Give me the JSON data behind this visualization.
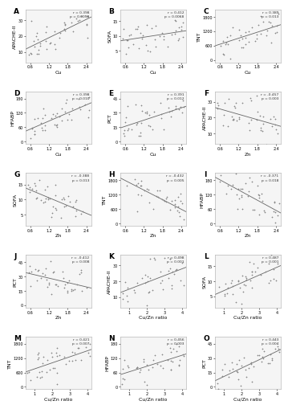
{
  "panels": [
    {
      "label": "A",
      "row": 0,
      "col": 0,
      "xlabel": "Cu",
      "ylabel": "APACHE-II",
      "r": "0.398",
      "p": "0.0098",
      "x_range": [
        0.45,
        2.55
      ],
      "y_range": [
        5,
        35
      ],
      "direction": "positive"
    },
    {
      "label": "B",
      "row": 0,
      "col": 1,
      "xlabel": "Cu",
      "ylabel": "SOFA",
      "r": "0.412",
      "p": "0.0068",
      "x_range": [
        0.45,
        2.55
      ],
      "y_range": [
        2,
        18
      ],
      "direction": "positive"
    },
    {
      "label": "C",
      "row": 0,
      "col": 2,
      "xlabel": "Cu",
      "ylabel": "TNT",
      "r": "0.389",
      "p": "0.013",
      "x_range": [
        0.45,
        2.55
      ],
      "y_range": [
        0,
        2000
      ],
      "direction": "positive"
    },
    {
      "label": "D",
      "row": 1,
      "col": 0,
      "xlabel": "Cu",
      "ylabel": "HFABP",
      "r": "0.398",
      "p": "0.010",
      "x_range": [
        0.45,
        2.55
      ],
      "y_range": [
        0,
        200
      ],
      "direction": "positive"
    },
    {
      "label": "E",
      "row": 1,
      "col": 1,
      "xlabel": "Cu",
      "ylabel": "PCT",
      "r": "0.391",
      "p": "0.012",
      "x_range": [
        0.45,
        2.55
      ],
      "y_range": [
        0,
        50
      ],
      "direction": "positive"
    },
    {
      "label": "F",
      "row": 1,
      "col": 2,
      "xlabel": "Zn",
      "ylabel": "APACHE-II",
      "r": "-0.457",
      "p": "0.003",
      "x_range": [
        0.45,
        2.55
      ],
      "y_range": [
        5,
        35
      ],
      "direction": "negative"
    },
    {
      "label": "G",
      "row": 2,
      "col": 0,
      "xlabel": "Zn",
      "ylabel": "SOFA",
      "r": "-0.388",
      "p": "0.013",
      "x_range": [
        0.45,
        2.55
      ],
      "y_range": [
        2,
        18
      ],
      "direction": "negative"
    },
    {
      "label": "H",
      "row": 2,
      "col": 1,
      "xlabel": "Zn",
      "ylabel": "TNT",
      "r": "-0.432",
      "p": "0.005",
      "x_range": [
        0.45,
        2.55
      ],
      "y_range": [
        0,
        2000
      ],
      "direction": "negative"
    },
    {
      "label": "I",
      "row": 2,
      "col": 2,
      "xlabel": "Zn",
      "ylabel": "HFABP",
      "r": "-0.371",
      "p": "0.018",
      "x_range": [
        0.45,
        2.55
      ],
      "y_range": [
        0,
        200
      ],
      "direction": "negative"
    },
    {
      "label": "J",
      "row": 3,
      "col": 0,
      "xlabel": "Zn",
      "ylabel": "PCT",
      "r": "-0.412",
      "p": "0.008",
      "x_range": [
        0.45,
        2.55
      ],
      "y_range": [
        0,
        50
      ],
      "direction": "negative"
    },
    {
      "label": "K",
      "row": 3,
      "col": 1,
      "xlabel": "Cu/Zn ratio",
      "ylabel": "APACHE-II",
      "r": "0.498",
      "p": "0.001",
      "x_range": [
        0.5,
        4.2
      ],
      "y_range": [
        5,
        35
      ],
      "direction": "positive"
    },
    {
      "label": "L",
      "row": 3,
      "col": 2,
      "xlabel": "Cu/Zn ratio",
      "ylabel": "SOFA",
      "r": "0.487",
      "p": "0.001",
      "x_range": [
        0.5,
        4.2
      ],
      "y_range": [
        2,
        18
      ],
      "direction": "positive"
    },
    {
      "label": "M",
      "row": 4,
      "col": 0,
      "xlabel": "Cu/Zn ratio",
      "ylabel": "TNT",
      "r": "0.421",
      "p": "0.007",
      "x_range": [
        0.5,
        4.2
      ],
      "y_range": [
        0,
        2000
      ],
      "direction": "positive"
    },
    {
      "label": "N",
      "row": 4,
      "col": 1,
      "xlabel": "Cu/Zn ratio",
      "ylabel": "HFABP",
      "r": "0.456",
      "p": "0.003",
      "x_range": [
        0.5,
        4.2
      ],
      "y_range": [
        0,
        200
      ],
      "direction": "positive"
    },
    {
      "label": "O",
      "row": 4,
      "col": 2,
      "xlabel": "Cu/Zn ratio",
      "ylabel": "PCT",
      "r": "0.443",
      "p": "0.004",
      "x_range": [
        0.5,
        4.2
      ],
      "y_range": [
        0,
        50
      ],
      "direction": "positive"
    }
  ],
  "n_points": 41,
  "marker": "+",
  "marker_size": 4,
  "marker_color": "#888888",
  "line_color": "#666666",
  "background_color": "#ffffff",
  "panel_bg": "#f5f5f5",
  "label_fontsize": 4.5,
  "tick_fontsize": 3.5,
  "annotation_fontsize": 3.2,
  "bold_label_fontsize": 6.5,
  "fig_width": 3.57,
  "fig_height": 5.0,
  "dpi": 100
}
